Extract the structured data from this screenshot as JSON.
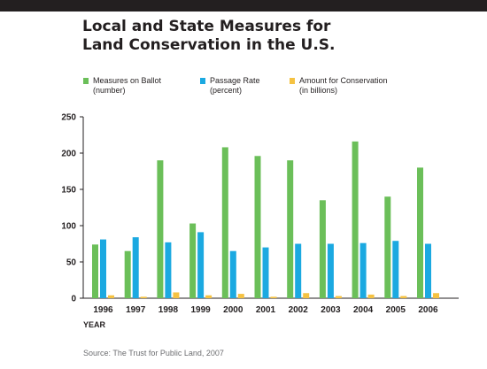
{
  "title_line1": "Local and State Measures for",
  "title_line2": "Land Conservation in the U.S.",
  "legend": [
    {
      "line1": "Measures on Ballot",
      "line2": "(number)",
      "color": "#6bbf59"
    },
    {
      "line1": "Passage Rate",
      "line2": "(percent)",
      "color": "#1ba9e1"
    },
    {
      "line1": "Amount for Conservation",
      "line2": "(in billions)",
      "color": "#f5c242"
    }
  ],
  "xlabel": "YEAR",
  "source": "Source: The Trust for Public Land, 2007",
  "chart_data": {
    "type": "bar",
    "title": "Local and State Measures for Land Conservation in the U.S.",
    "xlabel": "YEAR",
    "ylabel": "",
    "categories": [
      "1996",
      "1997",
      "1998",
      "1999",
      "2000",
      "2001",
      "2002",
      "2003",
      "2004",
      "2005",
      "2006"
    ],
    "ylim": [
      0,
      250
    ],
    "yticks": [
      0,
      50,
      100,
      150,
      200,
      250
    ],
    "grid": false,
    "legend_position": "top",
    "series": [
      {
        "name": "Measures on Ballot (number)",
        "color": "#6bbf59",
        "values": [
          74,
          65,
          190,
          103,
          208,
          196,
          190,
          135,
          216,
          140,
          180
        ]
      },
      {
        "name": "Passage Rate (percent)",
        "color": "#1ba9e1",
        "values": [
          81,
          84,
          77,
          91,
          65,
          70,
          75,
          75,
          76,
          79,
          75
        ]
      },
      {
        "name": "Amount for Conservation (in billions)",
        "color": "#f5c242",
        "values": [
          4,
          2,
          8,
          4,
          6,
          2,
          7,
          3,
          5,
          3,
          7
        ]
      }
    ]
  }
}
